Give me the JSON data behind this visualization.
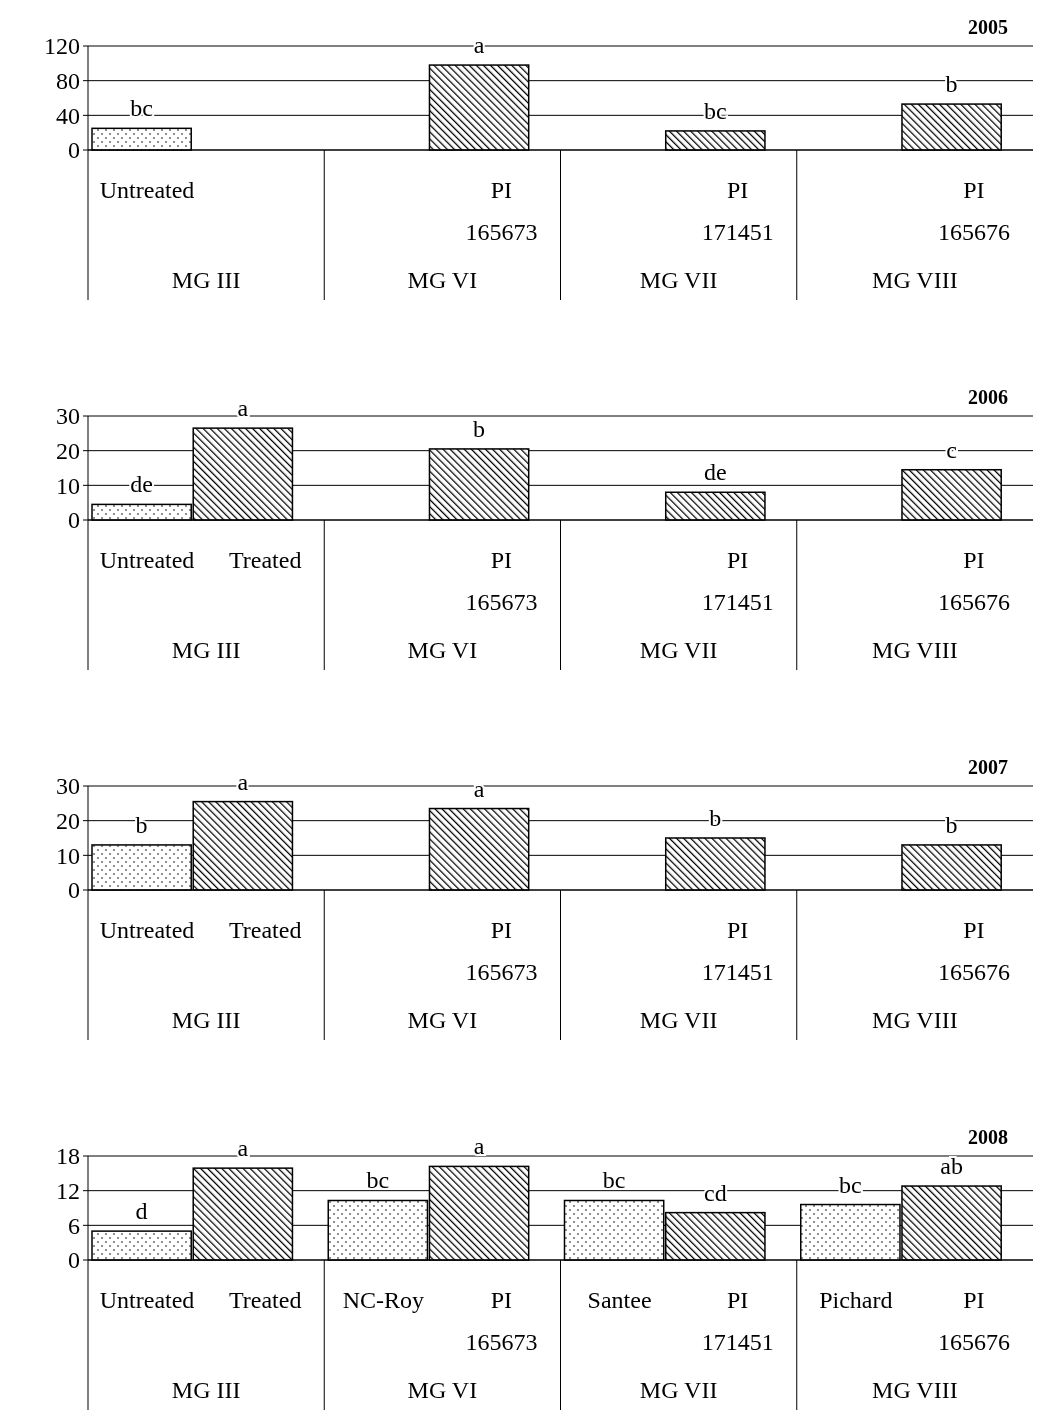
{
  "chart_data": [
    {
      "type": "bar",
      "title": "2005",
      "categories": [
        "Untreated",
        null,
        null,
        "PI 165673",
        null,
        "PI 171451",
        null,
        "PI 165676"
      ],
      "series": [
        {
          "color": "#000000",
          "values": [
            25,
            null,
            null,
            null,
            null,
            null,
            null,
            null
          ],
          "value_labels": [
            "bc",
            null,
            null,
            null,
            null,
            null,
            null,
            null
          ]
        },
        {
          "color": "#000000",
          "values": [
            null,
            null,
            null,
            98,
            null,
            22,
            null,
            53
          ],
          "value_labels": [
            null,
            null,
            null,
            "a",
            null,
            "bc",
            null,
            "b"
          ]
        }
      ],
      "annotations": [
        "MG III",
        "MG VI",
        "MG VII",
        "MG VIII"
      ],
      "ylim": [
        0,
        120
      ],
      "yticks": [
        0,
        40,
        80,
        120
      ],
      "grid": "y",
      "legend": false
    },
    {
      "type": "bar",
      "title": "2006",
      "categories": [
        "Untreated",
        "Treated",
        null,
        "PI 165673",
        null,
        "PI 171451",
        null,
        "PI 165676"
      ],
      "series": [
        {
          "color": "#000000",
          "values": [
            4.5,
            null,
            null,
            null,
            null,
            null,
            null,
            null
          ],
          "value_labels": [
            "de",
            null,
            null,
            null,
            null,
            null,
            null,
            null
          ]
        },
        {
          "color": "#000000",
          "values": [
            null,
            26.5,
            null,
            20.5,
            null,
            8,
            null,
            14.5
          ],
          "value_labels": [
            null,
            "a",
            null,
            "b",
            null,
            "de",
            null,
            "c"
          ]
        }
      ],
      "annotations": [
        "MG III",
        "MG VI",
        "MG VII",
        "MG VIII"
      ],
      "ylim": [
        0,
        30
      ],
      "yticks": [
        0,
        10,
        20,
        30
      ],
      "grid": "y",
      "legend": false
    },
    {
      "type": "bar",
      "title": "2007",
      "categories": [
        "Untreated",
        "Treated",
        null,
        "PI 165673",
        null,
        "PI 171451",
        null,
        "PI 165676"
      ],
      "series": [
        {
          "color": "#000000",
          "values": [
            13,
            null,
            null,
            null,
            null,
            null,
            null,
            null
          ],
          "value_labels": [
            "b",
            null,
            null,
            null,
            null,
            null,
            null,
            null
          ]
        },
        {
          "color": "#000000",
          "values": [
            null,
            25.5,
            null,
            23.5,
            null,
            15,
            null,
            13
          ],
          "value_labels": [
            null,
            "a",
            null,
            "a",
            null,
            "b",
            null,
            "b"
          ]
        }
      ],
      "annotations": [
        "MG III",
        "MG VI",
        "MG VII",
        "MG VIII"
      ],
      "ylim": [
        0,
        30
      ],
      "yticks": [
        0,
        10,
        20,
        30
      ],
      "grid": "y",
      "legend": false
    },
    {
      "type": "bar",
      "title": "2008",
      "categories": [
        "Untreated",
        "Treated",
        "NC-Roy",
        "PI 165673",
        "Santee",
        "PI 171451",
        "Pichard",
        "PI 165676"
      ],
      "series": [
        {
          "color": "#000000",
          "values": [
            5,
            null,
            10.3,
            null,
            10.3,
            null,
            9.6,
            null
          ],
          "value_labels": [
            "d",
            null,
            "bc",
            null,
            "bc",
            null,
            "bc",
            null
          ]
        },
        {
          "color": "#000000",
          "values": [
            null,
            15.9,
            null,
            16.2,
            null,
            8.2,
            null,
            12.8
          ],
          "value_labels": [
            null,
            "a",
            null,
            "a",
            null,
            "cd",
            null,
            "ab"
          ]
        }
      ],
      "annotations": [
        "MG III",
        "MG VI",
        "MG VII",
        "MG VIII"
      ],
      "ylim": [
        0,
        18
      ],
      "yticks": [
        0,
        6,
        12,
        18
      ],
      "grid": "y",
      "legend": false
    }
  ]
}
